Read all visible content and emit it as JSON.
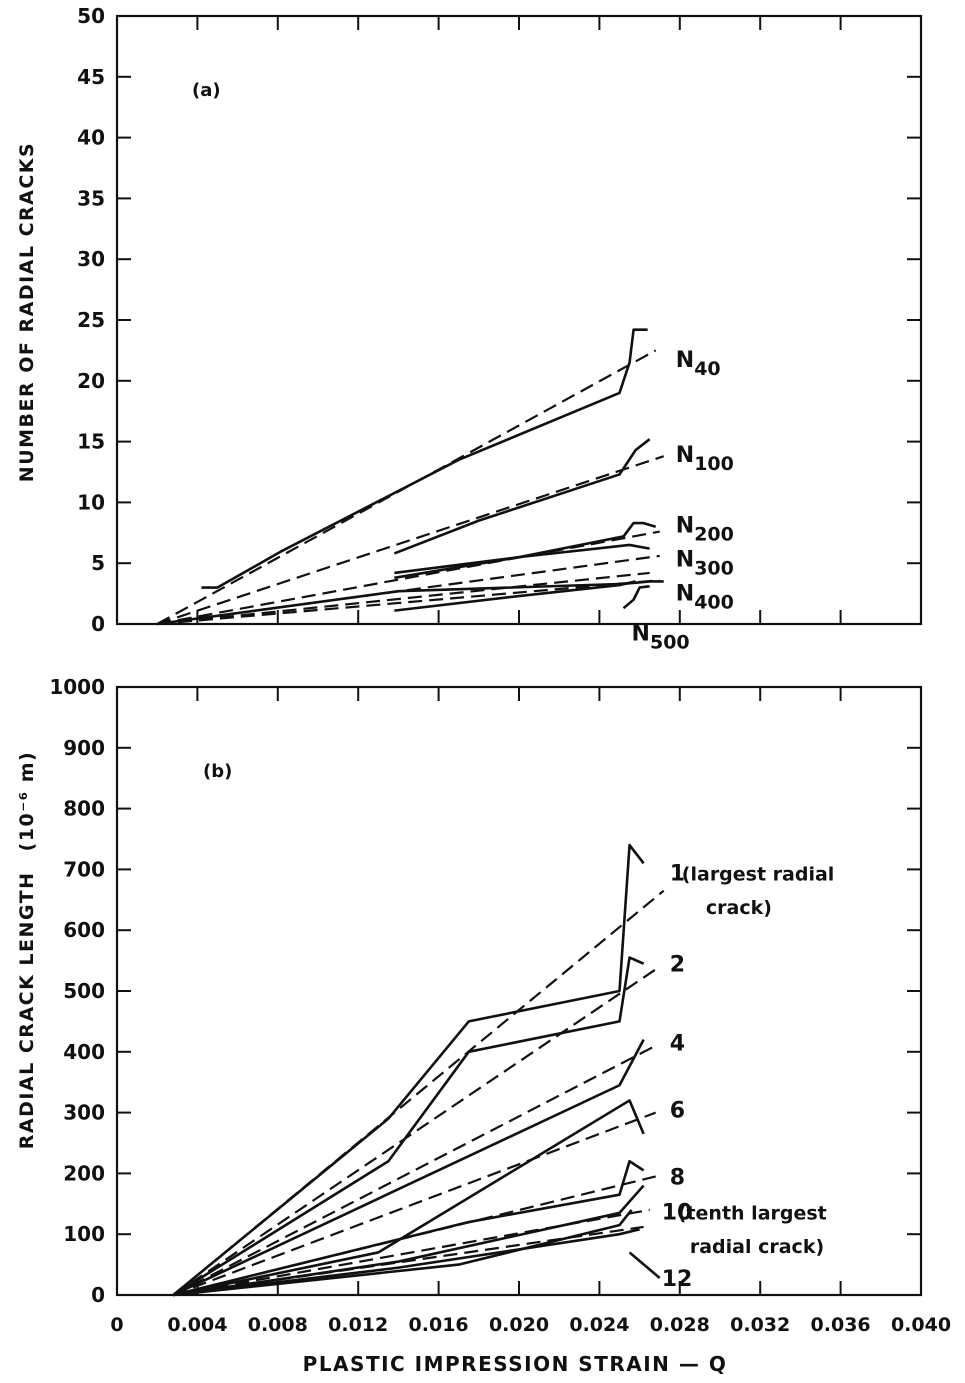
{
  "chart_data": [
    {
      "type": "line",
      "panel_label": "(a)",
      "ylabel": "NUMBER OF RADIAL CRACKS",
      "xlabel": "",
      "xlim": [
        0,
        0.04
      ],
      "ylim": [
        0,
        50
      ],
      "x_ticks": [
        0,
        0.004,
        0.008,
        0.012,
        0.016,
        0.02,
        0.024,
        0.028,
        0.032,
        0.036,
        0.04
      ],
      "y_ticks": [
        0,
        5,
        10,
        15,
        20,
        25,
        30,
        35,
        40,
        45,
        50
      ],
      "x_tick_labels": [],
      "y_tick_labels": [
        "0",
        "5",
        "10",
        "15",
        "20",
        "25",
        "30",
        "35",
        "40",
        "45",
        "50"
      ],
      "grid": false,
      "series": [
        {
          "label_base": "N",
          "label_sub": "40",
          "label_x": 0.0278,
          "label_y": 21.8,
          "measured": [
            [
              0.0042,
              3.0
            ],
            [
              0.005,
              3.0
            ],
            [
              0.0082,
              6.0
            ],
            [
              0.017,
              13.5
            ],
            [
              0.025,
              19.0
            ],
            [
              0.0255,
              21.5
            ],
            [
              0.0257,
              24.2
            ],
            [
              0.0264,
              24.2
            ]
          ],
          "fit": [
            [
              0.002,
              0.0
            ],
            [
              0.0268,
              22.5
            ]
          ]
        },
        {
          "label_base": "N",
          "label_sub": "100",
          "label_x": 0.0278,
          "label_y": 14.0,
          "measured": [
            [
              0.0138,
              5.8
            ],
            [
              0.018,
              8.5
            ],
            [
              0.025,
              12.3
            ],
            [
              0.0258,
              14.3
            ],
            [
              0.0265,
              15.2
            ]
          ],
          "fit": [
            [
              0.002,
              0.0
            ],
            [
              0.0272,
              13.8
            ]
          ]
        },
        {
          "label_base": "N",
          "label_sub": "200",
          "label_x": 0.0278,
          "label_y": 8.2,
          "measured": [
            [
              0.0138,
              3.8
            ],
            [
              0.02,
              5.5
            ],
            [
              0.0252,
              7.2
            ],
            [
              0.0257,
              8.3
            ],
            [
              0.0262,
              8.3
            ],
            [
              0.0268,
              8.0
            ]
          ],
          "fit": [
            [
              0.002,
              0.0
            ],
            [
              0.027,
              7.6
            ]
          ]
        },
        {
          "label_base": "N",
          "label_sub": "300",
          "label_x": 0.0278,
          "label_y": 5.4,
          "measured": [
            [
              0.0138,
              4.2
            ],
            [
              0.02,
              5.5
            ],
            [
              0.0255,
              6.5
            ],
            [
              0.0265,
              6.2
            ]
          ],
          "fit": [
            [
              0.002,
              0.0
            ],
            [
              0.027,
              5.6
            ]
          ]
        },
        {
          "label_base": "N",
          "label_sub": "400",
          "label_x": 0.0278,
          "label_y": 2.6,
          "measured": [
            [
              0.002,
              0.0
            ],
            [
              0.014,
              2.7
            ],
            [
              0.0252,
              3.3
            ],
            [
              0.0265,
              3.5
            ],
            [
              0.0272,
              3.5
            ]
          ],
          "fit": [
            [
              0.002,
              0.0
            ],
            [
              0.027,
              3.6
            ]
          ]
        },
        {
          "label_base": "N",
          "label_sub": "500",
          "label_x": 0.0256,
          "label_y": -0.7,
          "measured": [
            [
              0.0138,
              1.1
            ],
            [
              0.02,
              2.3
            ],
            [
              0.025,
              3.2
            ],
            [
              0.0258,
              3.5
            ]
          ],
          "fit": [
            [
              0.002,
              0.0
            ],
            [
              0.0265,
              4.2
            ]
          ]
        },
        {
          "label_base": "",
          "label_sub": "",
          "label_x": null,
          "label_y": null,
          "measured": [
            [
              0.0252,
              1.3
            ],
            [
              0.0257,
              2.0
            ],
            [
              0.026,
              3.0
            ],
            [
              0.0265,
              3.1
            ]
          ],
          "fit": []
        }
      ]
    },
    {
      "type": "line",
      "panel_label": "(b)",
      "ylabel": "RADIAL CRACK LENGTH",
      "ylabel_unit": "(10⁻⁶ m)",
      "xlabel": "PLASTIC IMPRESSION STRAIN — Q",
      "xlim": [
        0,
        0.04
      ],
      "ylim": [
        0,
        1000
      ],
      "x_ticks": [
        0,
        0.004,
        0.008,
        0.012,
        0.016,
        0.02,
        0.024,
        0.028,
        0.032,
        0.036,
        0.04
      ],
      "y_ticks": [
        0,
        100,
        200,
        300,
        400,
        500,
        600,
        700,
        800,
        900,
        1000
      ],
      "x_tick_labels": [
        "0",
        "0.004",
        "0.008",
        "0.012",
        "0.016",
        "0.020",
        "0.024",
        "0.028",
        "0.032",
        "0.036",
        "0.040"
      ],
      "y_tick_labels": [
        "0",
        "100",
        "200",
        "300",
        "400",
        "500",
        "600",
        "700",
        "800",
        "900",
        "1000"
      ],
      "grid": false,
      "series": [
        {
          "label": "1",
          "label_x": 0.0275,
          "label_y": 695,
          "measured": [
            [
              0.0028,
              0
            ],
            [
              0.0135,
              290
            ],
            [
              0.0175,
              450
            ],
            [
              0.025,
              500
            ],
            [
              0.0255,
              740
            ],
            [
              0.0262,
              710
            ]
          ],
          "fit": [
            [
              0.0028,
              0
            ],
            [
              0.0272,
              665
            ]
          ]
        },
        {
          "label": "2",
          "label_x": 0.0275,
          "label_y": 545,
          "measured": [
            [
              0.0028,
              0
            ],
            [
              0.0135,
              220
            ],
            [
              0.0175,
              400
            ],
            [
              0.025,
              450
            ],
            [
              0.0255,
              555
            ],
            [
              0.0262,
              545
            ]
          ],
          "fit": [
            [
              0.0028,
              0
            ],
            [
              0.027,
              540
            ]
          ]
        },
        {
          "label": "4",
          "label_x": 0.0275,
          "label_y": 415,
          "measured": [
            [
              0.0028,
              0
            ],
            [
              0.025,
              345
            ],
            [
              0.0262,
              420
            ]
          ],
          "fit": [
            [
              0.0028,
              0
            ],
            [
              0.0268,
              410
            ]
          ]
        },
        {
          "label": "6",
          "label_x": 0.0275,
          "label_y": 305,
          "measured": [
            [
              0.0028,
              0
            ],
            [
              0.013,
              70
            ],
            [
              0.0255,
              320
            ],
            [
              0.0262,
              265
            ]
          ],
          "fit": [
            [
              0.0028,
              0
            ],
            [
              0.0268,
              300
            ]
          ]
        },
        {
          "label": "8",
          "label_x": 0.0275,
          "label_y": 195,
          "measured": [
            [
              0.0028,
              0
            ],
            [
              0.0175,
              120
            ],
            [
              0.025,
              165
            ],
            [
              0.0255,
              220
            ],
            [
              0.0262,
              205
            ]
          ],
          "fit": [
            [
              0.0028,
              0
            ],
            [
              0.0268,
              195
            ]
          ]
        },
        {
          "label": "10",
          "label_x": 0.0271,
          "label_y": 137,
          "measured": [
            [
              0.0028,
              0
            ],
            [
              0.014,
              55
            ],
            [
              0.025,
              135
            ],
            [
              0.0262,
              180
            ]
          ],
          "fit": [
            [
              0.0028,
              0
            ],
            [
              0.0265,
              140
            ]
          ]
        },
        {
          "label": "12",
          "label_x": 0.0271,
          "label_y": 28,
          "measured": [
            [
              0.0028,
              0
            ],
            [
              0.014,
              45
            ],
            [
              0.025,
              100
            ],
            [
              0.026,
              108
            ]
          ],
          "fit": [
            [
              0.0028,
              0
            ],
            [
              0.0262,
              112
            ]
          ]
        },
        {
          "label": "",
          "label_x": null,
          "label_y": null,
          "measured": [
            [
              0.0028,
              0
            ],
            [
              0.017,
              50
            ],
            [
              0.025,
              115
            ],
            [
              0.0256,
              140
            ]
          ],
          "fit": []
        }
      ],
      "annotations": [
        {
          "text": "(largest radial",
          "x": 0.0281,
          "y": 695
        },
        {
          "text": "crack)",
          "x": 0.0293,
          "y": 640
        },
        {
          "text": "(tenth largest",
          "x": 0.0279,
          "y": 137
        },
        {
          "text": "radial crack)",
          "x": 0.0285,
          "y": 82
        }
      ],
      "pointer": {
        "from": [
          0.027,
          28
        ],
        "to": [
          0.0255,
          70
        ]
      }
    }
  ]
}
